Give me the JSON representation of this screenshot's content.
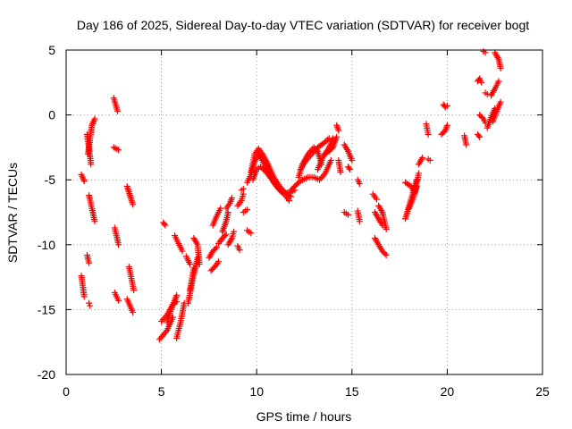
{
  "chart_data": {
    "type": "scatter",
    "title": "Day 186 of 2025, Sidereal Day-to-day VTEC variation (SDTVAR) for receiver bogt",
    "xlabel": "GPS time / hours",
    "ylabel": "SDTVAR / TECUs",
    "xlim": [
      0,
      25
    ],
    "ylim": [
      -20,
      5
    ],
    "xticks": [
      0,
      5,
      10,
      15,
      20,
      25
    ],
    "yticks": [
      -20,
      -15,
      -10,
      -5,
      0,
      5
    ],
    "xtick_labels": [
      "0",
      "5",
      "10",
      "15",
      "20",
      "25"
    ],
    "ytick_labels": [
      "-20",
      "-15",
      "-10",
      "-5",
      "0",
      "5"
    ],
    "grid": true,
    "marker": "+",
    "color": "#ff0000",
    "segments": [
      {
        "x": [
          0.8,
          0.95
        ],
        "y": [
          -4.6,
          -5.1
        ]
      },
      {
        "x": [
          0.8,
          0.95
        ],
        "y": [
          -12.4,
          -14.0
        ]
      },
      {
        "x": [
          1.1,
          1.2
        ],
        "y": [
          -10.8,
          -11.4
        ]
      },
      {
        "x": [
          1.2,
          1.25
        ],
        "y": [
          -14.5,
          -14.7
        ]
      },
      {
        "x": [
          1.15,
          1.35,
          1.5
        ],
        "y": [
          -3.0,
          -0.8,
          -0.3
        ]
      },
      {
        "x": [
          1.1,
          1.2,
          1.3
        ],
        "y": [
          -1.5,
          -2.5,
          -3.8
        ]
      },
      {
        "x": [
          1.2,
          1.4,
          1.5
        ],
        "y": [
          -6.2,
          -7.5,
          -8.2
        ]
      },
      {
        "x": [
          2.5,
          2.7
        ],
        "y": [
          1.3,
          0.3
        ]
      },
      {
        "x": [
          2.5,
          2.75
        ],
        "y": [
          -2.5,
          -2.7
        ]
      },
      {
        "x": [
          2.55,
          2.75
        ],
        "y": [
          -8.7,
          -10.0
        ]
      },
      {
        "x": [
          2.55,
          2.75
        ],
        "y": [
          -13.7,
          -14.3
        ]
      },
      {
        "x": [
          3.2,
          3.5
        ],
        "y": [
          -5.5,
          -6.9
        ]
      },
      {
        "x": [
          3.3,
          3.55
        ],
        "y": [
          -11.7,
          -13.5
        ]
      },
      {
        "x": [
          3.2,
          3.5
        ],
        "y": [
          -14.2,
          -15.2
        ]
      },
      {
        "x": [
          4.9,
          5.3,
          5.6
        ],
        "y": [
          -17.3,
          -16.6,
          -15.6
        ]
      },
      {
        "x": [
          5.0,
          5.3,
          5.6,
          5.8
        ],
        "y": [
          -15.9,
          -15.4,
          -14.6,
          -14.4
        ]
      },
      {
        "x": [
          5.3,
          5.5,
          5.8
        ],
        "y": [
          -16.0,
          -15.0,
          -13.9
        ]
      },
      {
        "x": [
          5.1,
          5.2
        ],
        "y": [
          -8.3,
          -8.5
        ]
      },
      {
        "x": [
          5.8,
          6.0,
          6.2
        ],
        "y": [
          -17.2,
          -16.0,
          -14.5
        ]
      },
      {
        "x": [
          5.7,
          5.9,
          6.1
        ],
        "y": [
          -9.3,
          -9.9,
          -10.5
        ]
      },
      {
        "x": [
          6.3,
          6.5
        ],
        "y": [
          -10.9,
          -11.5
        ]
      },
      {
        "x": [
          6.4,
          6.6,
          6.9
        ],
        "y": [
          -14.5,
          -13.0,
          -11.0
        ]
      },
      {
        "x": [
          6.7,
          6.9,
          7.0
        ],
        "y": [
          -9.5,
          -10.0,
          -11.5
        ]
      },
      {
        "x": [
          6.5,
          6.7
        ],
        "y": [
          -13.5,
          -11.8
        ]
      },
      {
        "x": [
          7.5,
          7.7,
          7.9
        ],
        "y": [
          -11.0,
          -10.5,
          -10.2
        ]
      },
      {
        "x": [
          7.6,
          7.8,
          8.0
        ],
        "y": [
          -12.0,
          -11.7,
          -11.3
        ]
      },
      {
        "x": [
          7.7,
          7.9,
          8.1
        ],
        "y": [
          -8.5,
          -7.8,
          -7.2
        ]
      },
      {
        "x": [
          8.0,
          8.2,
          8.4
        ],
        "y": [
          -9.9,
          -9.5,
          -9.2
        ]
      },
      {
        "x": [
          8.2,
          8.4,
          8.5
        ],
        "y": [
          -9.0,
          -8.2,
          -7.5
        ]
      },
      {
        "x": [
          8.4,
          8.6,
          8.7
        ],
        "y": [
          -7.2,
          -6.8,
          -6.4
        ]
      },
      {
        "x": [
          8.5,
          8.7,
          8.8
        ],
        "y": [
          -10.0,
          -9.5,
          -9.0
        ]
      },
      {
        "x": [
          9.0,
          9.2,
          9.3
        ],
        "y": [
          -7.0,
          -6.6,
          -6.1
        ]
      },
      {
        "x": [
          9.2,
          9.3
        ],
        "y": [
          -5.8,
          -5.7
        ]
      },
      {
        "x": [
          9.0,
          9.1
        ],
        "y": [
          -10.1,
          -10.4
        ]
      },
      {
        "x": [
          9.3,
          9.5
        ],
        "y": [
          -7.5,
          -7.3
        ]
      },
      {
        "x": [
          9.5,
          9.7
        ],
        "y": [
          -8.9,
          -9.1
        ]
      },
      {
        "x": [
          9.5,
          9.7,
          9.9,
          10.1,
          10.3,
          10.6,
          10.9,
          11.2,
          11.5,
          11.7
        ],
        "y": [
          -5.2,
          -4.6,
          -3.6,
          -3.0,
          -3.5,
          -4.3,
          -5.2,
          -5.8,
          -6.2,
          -6.6
        ]
      },
      {
        "x": [
          9.7,
          9.9,
          10.1,
          10.3,
          10.6,
          10.9,
          11.2,
          11.5,
          11.8
        ],
        "y": [
          -4.4,
          -3.0,
          -2.6,
          -3.0,
          -3.8,
          -4.8,
          -5.5,
          -6.0,
          -6.3
        ]
      },
      {
        "x": [
          9.8,
          10.0,
          10.2,
          10.5,
          10.8,
          11.1,
          11.4,
          11.7,
          12.0
        ],
        "y": [
          -5.0,
          -4.2,
          -4.0,
          -4.4,
          -5.0,
          -5.6,
          -6.0,
          -6.0,
          -5.8
        ]
      },
      {
        "x": [
          11.8,
          12.0,
          12.2,
          12.4
        ],
        "y": [
          -5.8,
          -5.5,
          -5.2,
          -5.0
        ]
      },
      {
        "x": [
          12.2,
          12.4,
          12.7,
          13.0,
          13.2,
          13.4
        ],
        "y": [
          -4.8,
          -3.8,
          -3.0,
          -2.5,
          -2.8,
          -3.8
        ]
      },
      {
        "x": [
          12.3,
          12.6,
          12.9,
          13.2,
          13.5,
          13.8
        ],
        "y": [
          -4.2,
          -3.5,
          -3.0,
          -2.5,
          -2.2,
          -1.8
        ]
      },
      {
        "x": [
          12.4,
          12.7,
          13.0,
          13.3,
          13.6,
          13.9
        ],
        "y": [
          -5.0,
          -4.8,
          -4.8,
          -5.0,
          -4.5,
          -3.5
        ]
      },
      {
        "x": [
          13.2,
          13.5,
          13.8,
          14.0
        ],
        "y": [
          -4.2,
          -3.2,
          -2.5,
          -1.8
        ]
      },
      {
        "x": [
          13.6,
          13.8,
          14.0,
          14.2
        ],
        "y": [
          -3.0,
          -2.8,
          -2.5,
          -1.7
        ]
      },
      {
        "x": [
          14.2,
          14.3
        ],
        "y": [
          -0.8,
          -1.2
        ]
      },
      {
        "x": [
          14.3,
          14.4
        ],
        "y": [
          -3.5,
          -4.4
        ]
      },
      {
        "x": [
          14.6,
          14.8,
          15.0
        ],
        "y": [
          -2.3,
          -2.8,
          -3.5
        ]
      },
      {
        "x": [
          14.8,
          14.9
        ],
        "y": [
          -4.0,
          -4.2
        ]
      },
      {
        "x": [
          14.6,
          14.8
        ],
        "y": [
          -7.5,
          -7.7
        ]
      },
      {
        "x": [
          15.3,
          15.4
        ],
        "y": [
          -5.0,
          -5.3
        ]
      },
      {
        "x": [
          15.3,
          15.4
        ],
        "y": [
          -7.4,
          -8.2
        ]
      },
      {
        "x": [
          16.1,
          16.3
        ],
        "y": [
          -6.1,
          -6.5
        ]
      },
      {
        "x": [
          16.2,
          16.4,
          16.6
        ],
        "y": [
          -7.5,
          -8.0,
          -8.5
        ]
      },
      {
        "x": [
          16.2,
          16.4,
          16.6,
          16.8
        ],
        "y": [
          -9.5,
          -10.0,
          -10.5,
          -10.8
        ]
      },
      {
        "x": [
          16.4,
          16.6,
          16.8
        ],
        "y": [
          -7.0,
          -7.5,
          -8.8
        ]
      },
      {
        "x": [
          17.8,
          18.0,
          18.2,
          18.4
        ],
        "y": [
          -8.0,
          -7.0,
          -6.0,
          -5.0
        ]
      },
      {
        "x": [
          17.8,
          18.1,
          18.3,
          18.5
        ],
        "y": [
          -5.2,
          -5.5,
          -6.0,
          -4.5
        ]
      },
      {
        "x": [
          18.0,
          18.2,
          18.4
        ],
        "y": [
          -7.2,
          -6.5,
          -5.5
        ]
      },
      {
        "x": [
          18.5,
          18.7
        ],
        "y": [
          -3.8,
          -3.3
        ]
      },
      {
        "x": [
          18.9,
          19.0
        ],
        "y": [
          -0.7,
          -1.5
        ]
      },
      {
        "x": [
          19.0,
          19.1
        ],
        "y": [
          -3.4,
          -3.5
        ]
      },
      {
        "x": [
          19.7,
          19.9,
          20.0
        ],
        "y": [
          -1.5,
          -1.2,
          -0.8
        ]
      },
      {
        "x": [
          19.8,
          19.9,
          20.0
        ],
        "y": [
          0.8,
          0.6,
          0.7
        ]
      },
      {
        "x": [
          20.9,
          21.0
        ],
        "y": [
          -1.6,
          -2.3
        ]
      },
      {
        "x": [
          21.6,
          21.7
        ],
        "y": [
          -1.5,
          -1.7
        ]
      },
      {
        "x": [
          21.6,
          21.7,
          21.8
        ],
        "y": [
          2.6,
          2.8,
          2.5
        ]
      },
      {
        "x": [
          21.7,
          21.9,
          22.0
        ],
        "y": [
          0.0,
          -0.3,
          -0.6
        ]
      },
      {
        "x": [
          21.9,
          22.0
        ],
        "y": [
          4.9,
          4.8
        ]
      },
      {
        "x": [
          22.0,
          22.1
        ],
        "y": [
          1.7,
          1.6
        ]
      },
      {
        "x": [
          22.1,
          22.3,
          22.5
        ],
        "y": [
          -1.0,
          -0.2,
          0.5
        ]
      },
      {
        "x": [
          22.3,
          22.5,
          22.7
        ],
        "y": [
          1.5,
          2.0,
          2.6
        ]
      },
      {
        "x": [
          22.5,
          22.7,
          22.8
        ],
        "y": [
          4.8,
          4.3,
          3.6
        ]
      },
      {
        "x": [
          22.4,
          22.6,
          22.8
        ],
        "y": [
          -0.5,
          0.3,
          1.0
        ]
      }
    ]
  }
}
